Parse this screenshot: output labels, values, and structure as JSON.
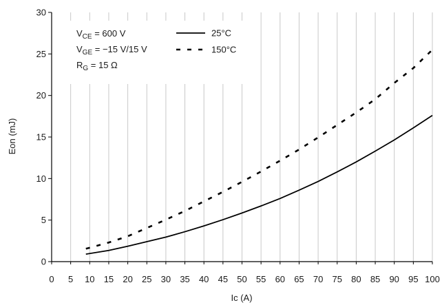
{
  "chart_data": {
    "type": "line",
    "xlabel": "Ic (A)",
    "ylabel": "Eon (mJ)",
    "xlim": [
      0,
      100
    ],
    "ylim": [
      0,
      30
    ],
    "xticks": [
      0,
      5,
      10,
      15,
      20,
      25,
      30,
      35,
      40,
      45,
      50,
      55,
      60,
      65,
      70,
      75,
      80,
      85,
      90,
      95,
      100
    ],
    "yticks": [
      0,
      5,
      10,
      15,
      20,
      25,
      30
    ],
    "grid": "vertical",
    "conditions": {
      "vce": {
        "base": "V",
        "sub": "CE",
        "rest": " = 600 V"
      },
      "vge": {
        "base": "V",
        "sub": "GE",
        "rest": " = −15 V/15 V"
      },
      "rg": {
        "base": "R",
        "sub": "G",
        "rest": " = 15 Ω"
      }
    },
    "series": [
      {
        "name": "25°C",
        "style": "solid",
        "color": "#000000",
        "x": [
          9,
          15,
          20,
          25,
          30,
          35,
          40,
          45,
          50,
          55,
          60,
          65,
          70,
          75,
          80,
          85,
          90,
          95,
          100
        ],
        "y": [
          0.9,
          1.35,
          1.85,
          2.4,
          2.95,
          3.6,
          4.3,
          5.05,
          5.85,
          6.7,
          7.6,
          8.6,
          9.65,
          10.8,
          12.0,
          13.3,
          14.65,
          16.1,
          17.6
        ]
      },
      {
        "name": "150°C",
        "style": "dashed",
        "color": "#000000",
        "x": [
          9,
          15,
          20,
          25,
          30,
          35,
          40,
          45,
          50,
          55,
          60,
          65,
          70,
          75,
          80,
          85,
          90,
          95,
          100
        ],
        "y": [
          1.55,
          2.3,
          3.05,
          4.05,
          5.05,
          6.1,
          7.25,
          8.4,
          9.6,
          10.85,
          12.15,
          13.5,
          14.95,
          16.45,
          17.95,
          19.55,
          21.5,
          23.3,
          25.5
        ]
      }
    ]
  }
}
